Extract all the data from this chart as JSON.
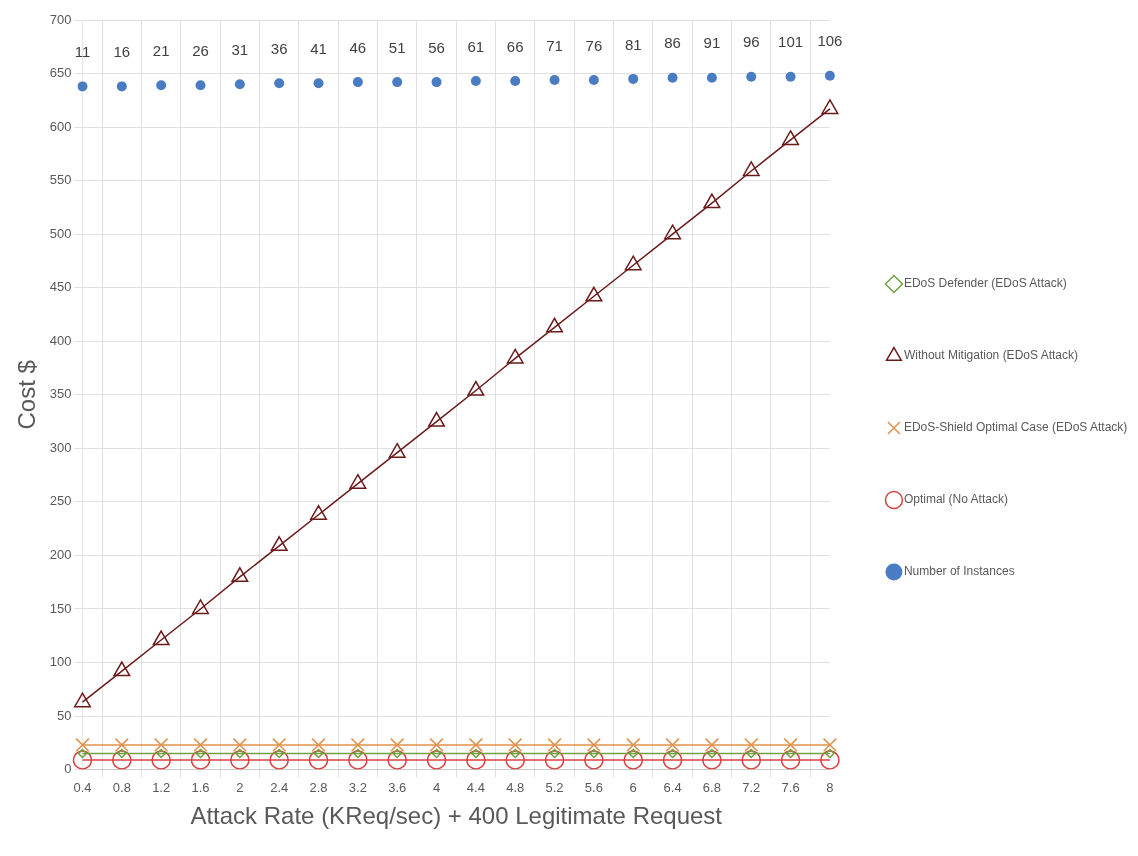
{
  "chart_data": {
    "type": "line",
    "xlabel": "Attack Rate (KReq/sec) + 400 Legitimate Request",
    "ylabel": "Cost $",
    "categories": [
      "0.4",
      "0.8",
      "1.2",
      "1.6",
      "2",
      "2.4",
      "2.8",
      "3.2",
      "3.6",
      "4",
      "4.4",
      "4.8",
      "5.2",
      "5.6",
      "6",
      "6.4",
      "6.8",
      "7.2",
      "7.6",
      "8"
    ],
    "ylim": [
      0,
      700
    ],
    "yticks": [
      0,
      50,
      100,
      150,
      200,
      250,
      300,
      350,
      400,
      450,
      500,
      550,
      600,
      650,
      700
    ],
    "grid": true,
    "legend": "right",
    "series": [
      {
        "name": "EDoS Defender (EDoS Attack)",
        "color": "#70a040",
        "marker": "diamond",
        "values": [
          15,
          15,
          15,
          15,
          15,
          15,
          15,
          15,
          15,
          15,
          15,
          15,
          15,
          15,
          15,
          15,
          15,
          15,
          15,
          15
        ]
      },
      {
        "name": "Without Mitigation (EDoS Attack)",
        "color": "#6b1a1a",
        "marker": "triangle",
        "values": [
          63,
          92,
          121,
          150,
          180,
          209,
          238,
          267,
          296,
          325,
          354,
          384,
          413,
          442,
          471,
          500,
          529,
          559,
          588,
          617
        ]
      },
      {
        "name": "EDoS-Shield Optimal Case (EDoS Attack)",
        "color": "#e0904a",
        "marker": "cross",
        "values": [
          23,
          23,
          23,
          23,
          23,
          23,
          23,
          23,
          23,
          23,
          23,
          23,
          23,
          23,
          23,
          23,
          23,
          23,
          23,
          23
        ]
      },
      {
        "name": "Optimal (No Attack)",
        "color": "#d94040",
        "marker": "circle",
        "values": [
          9,
          9,
          9,
          9,
          9,
          9,
          9,
          9,
          9,
          9,
          9,
          9,
          9,
          9,
          9,
          9,
          9,
          9,
          9,
          9
        ]
      },
      {
        "name": "Number of Instances",
        "type": "scatter",
        "color": "#4a7cc4",
        "marker": "circle",
        "values": [
          638,
          638,
          639,
          639,
          640,
          641,
          641,
          642,
          642,
          642,
          643,
          643,
          644,
          644,
          645,
          646,
          646,
          647,
          647,
          648
        ]
      }
    ],
    "annotations": [
      {
        "text": "11",
        "x": "0.4",
        "y": 638
      },
      {
        "text": "16",
        "x": "0.8",
        "y": 638
      },
      {
        "text": "21",
        "x": "1.2",
        "y": 639
      },
      {
        "text": "26",
        "x": "1.6",
        "y": 639
      },
      {
        "text": "31",
        "x": "2",
        "y": 640
      },
      {
        "text": "36",
        "x": "2.4",
        "y": 641
      },
      {
        "text": "41",
        "x": "2.8",
        "y": 641
      },
      {
        "text": "46",
        "x": "3.2",
        "y": 642
      },
      {
        "text": "51",
        "x": "3.6",
        "y": 642
      },
      {
        "text": "56",
        "x": "4",
        "y": 642
      },
      {
        "text": "61",
        "x": "4.4",
        "y": 643
      },
      {
        "text": "66",
        "x": "4.8",
        "y": 643
      },
      {
        "text": "71",
        "x": "5.2",
        "y": 644
      },
      {
        "text": "76",
        "x": "5.6",
        "y": 644
      },
      {
        "text": "81",
        "x": "6",
        "y": 645
      },
      {
        "text": "86",
        "x": "6.4",
        "y": 646
      },
      {
        "text": "91",
        "x": "6.8",
        "y": 646
      },
      {
        "text": "96",
        "x": "7.2",
        "y": 647
      },
      {
        "text": "101",
        "x": "7.6",
        "y": 647
      },
      {
        "text": "106",
        "x": "8",
        "y": 648
      }
    ]
  }
}
